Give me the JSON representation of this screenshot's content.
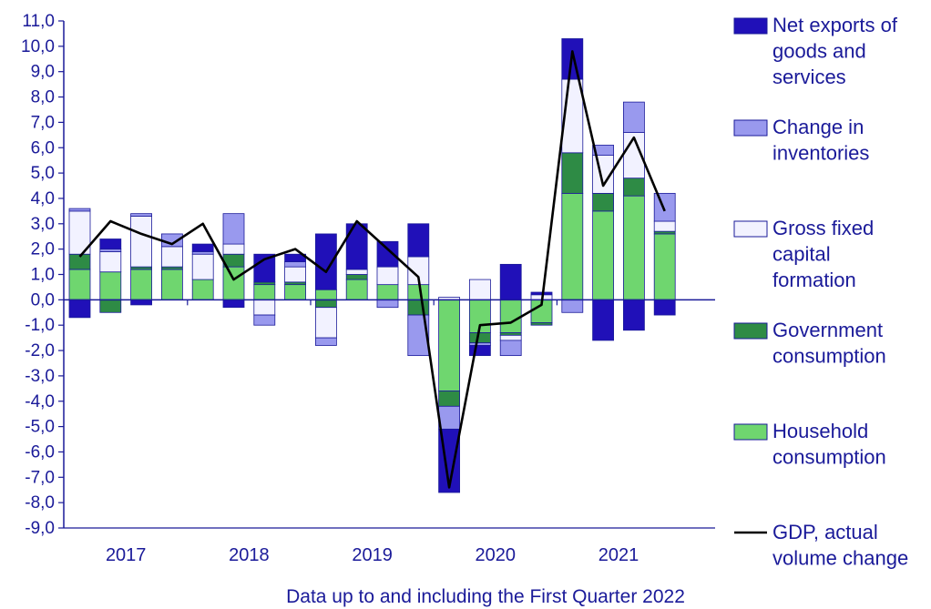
{
  "chart_data": {
    "type": "bar",
    "stacked": true,
    "ylim": [
      -9,
      11
    ],
    "y_ticks": [
      "-9,0",
      "-8,0",
      "-7,0",
      "-6,0",
      "-5,0",
      "-4,0",
      "-3,0",
      "-2,0",
      "-1,0",
      "0,0",
      "1,0",
      "2,0",
      "3,0",
      "4,0",
      "5,0",
      "6,0",
      "7,0",
      "8,0",
      "9,0",
      "10,0",
      "11,0"
    ],
    "x_year_labels": [
      "2017",
      "2018",
      "2019",
      "2020",
      "2021"
    ],
    "categories": [
      "2017Q1",
      "2017Q2",
      "2017Q3",
      "2017Q4",
      "2018Q1",
      "2018Q2",
      "2018Q3",
      "2018Q4",
      "2019Q1",
      "2019Q2",
      "2019Q3",
      "2019Q4",
      "2020Q1",
      "2020Q2",
      "2020Q3",
      "2020Q4",
      "2021Q1",
      "2021Q2",
      "2021Q3",
      "2021Q4",
      "2022Q1"
    ],
    "series": [
      {
        "name": "Household consumption",
        "color": "#6fd66f",
        "values": [
          1.2,
          1.1,
          1.2,
          1.2,
          0.8,
          1.3,
          0.6,
          0.6,
          0.4,
          0.8,
          0.6,
          0.6,
          -3.6,
          -1.3,
          -1.3,
          -0.9,
          4.2,
          3.5,
          4.1,
          2.6,
          0.0
        ]
      },
      {
        "name": "Government consumption",
        "color": "#2e8b45",
        "values": [
          0.6,
          -0.5,
          0.1,
          0.1,
          0.0,
          0.5,
          0.1,
          0.1,
          -0.3,
          0.2,
          0.0,
          -0.6,
          -0.6,
          -0.4,
          -0.1,
          -0.1,
          1.6,
          0.7,
          0.7,
          0.1,
          0.0
        ]
      },
      {
        "name": "Gross fixed capital formation",
        "color": "#f2f2ff",
        "values": [
          1.7,
          0.8,
          2.0,
          0.8,
          1.0,
          0.4,
          -0.6,
          0.6,
          -1.2,
          0.2,
          0.7,
          1.1,
          0.1,
          0.8,
          -0.2,
          0.2,
          2.9,
          1.5,
          1.8,
          0.4,
          0.0
        ]
      },
      {
        "name": "Change in inventories",
        "color": "#9999ee",
        "values": [
          0.1,
          0.1,
          0.1,
          0.5,
          0.1,
          1.2,
          -0.4,
          0.2,
          -0.3,
          0.0,
          -0.3,
          -1.6,
          -0.9,
          -0.1,
          -0.6,
          0.0,
          -0.5,
          0.4,
          1.2,
          1.1,
          0.0
        ]
      },
      {
        "name": "Net exports of goods and services",
        "color": "#2010b8",
        "values": [
          -0.7,
          0.4,
          -0.2,
          0.0,
          0.3,
          -0.3,
          1.1,
          0.3,
          2.2,
          1.8,
          1.0,
          1.3,
          -2.5,
          -0.4,
          1.4,
          0.1,
          1.6,
          -1.6,
          -1.2,
          -0.6,
          0.0
        ]
      }
    ],
    "line": {
      "name": "GDP, actual volume change",
      "values": [
        2.9,
        1.7,
        3.1,
        2.6,
        2.2,
        3.0,
        0.8,
        1.6,
        2.0,
        1.1,
        3.1,
        2.0,
        0.9,
        -7.4,
        -1.0,
        -0.9,
        -0.2,
        9.8,
        4.5,
        6.4,
        3.5
      ],
      "x_offset_quarters": -1
    },
    "legend": {
      "placement": "right",
      "entries": [
        {
          "lines": [
            "Net exports of",
            "goods and",
            "services"
          ],
          "color": "#2010b8",
          "kind": "box"
        },
        {
          "lines": [
            "Change in",
            "inventories"
          ],
          "color": "#9999ee",
          "kind": "box"
        },
        {
          "lines": [
            "Gross fixed",
            "capital",
            "formation"
          ],
          "color": "#f2f2ff",
          "kind": "box"
        },
        {
          "lines": [
            "Government",
            "consumption"
          ],
          "color": "#2e8b45",
          "kind": "box"
        },
        {
          "lines": [
            "Household",
            "consumption"
          ],
          "color": "#6fd66f",
          "kind": "box"
        },
        {
          "lines": [
            "GDP, actual",
            "volume change"
          ],
          "color": "#000000",
          "kind": "line"
        }
      ]
    },
    "footnote": "Data up to and including the First Quarter 2022",
    "grid": false,
    "axis_color": "#1a1a99"
  }
}
